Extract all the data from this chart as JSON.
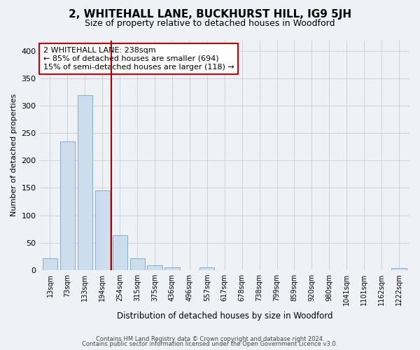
{
  "title": "2, WHITEHALL LANE, BUCKHURST HILL, IG9 5JH",
  "subtitle": "Size of property relative to detached houses in Woodford",
  "xlabel": "Distribution of detached houses by size in Woodford",
  "ylabel": "Number of detached properties",
  "bar_labels": [
    "13sqm",
    "73sqm",
    "133sqm",
    "194sqm",
    "254sqm",
    "315sqm",
    "375sqm",
    "436sqm",
    "496sqm",
    "557sqm",
    "617sqm",
    "678sqm",
    "738sqm",
    "799sqm",
    "859sqm",
    "920sqm",
    "980sqm",
    "1041sqm",
    "1101sqm",
    "1162sqm",
    "1222sqm"
  ],
  "bar_values": [
    21,
    235,
    320,
    145,
    63,
    21,
    8,
    5,
    0,
    5,
    0,
    0,
    0,
    0,
    0,
    0,
    0,
    0,
    0,
    0,
    4
  ],
  "bar_color": "#ccdded",
  "bar_edgecolor": "#88aec8",
  "vline_x": 3.5,
  "vline_color": "#aa0000",
  "annotation_line1": "2 WHITEHALL LANE: 238sqm",
  "annotation_line2": "← 85% of detached houses are smaller (694)",
  "annotation_line3": "15% of semi-detached houses are larger (118) →",
  "annotation_box_color": "white",
  "annotation_box_edgecolor": "#cc0000",
  "ylim": [
    0,
    420
  ],
  "yticks": [
    0,
    50,
    100,
    150,
    200,
    250,
    300,
    350,
    400
  ],
  "grid_color": "#cccccc",
  "background_color": "#eef2f7",
  "footer1": "Contains HM Land Registry data © Crown copyright and database right 2024.",
  "footer2": "Contains public sector information licensed under the Open Government Licence v3.0."
}
